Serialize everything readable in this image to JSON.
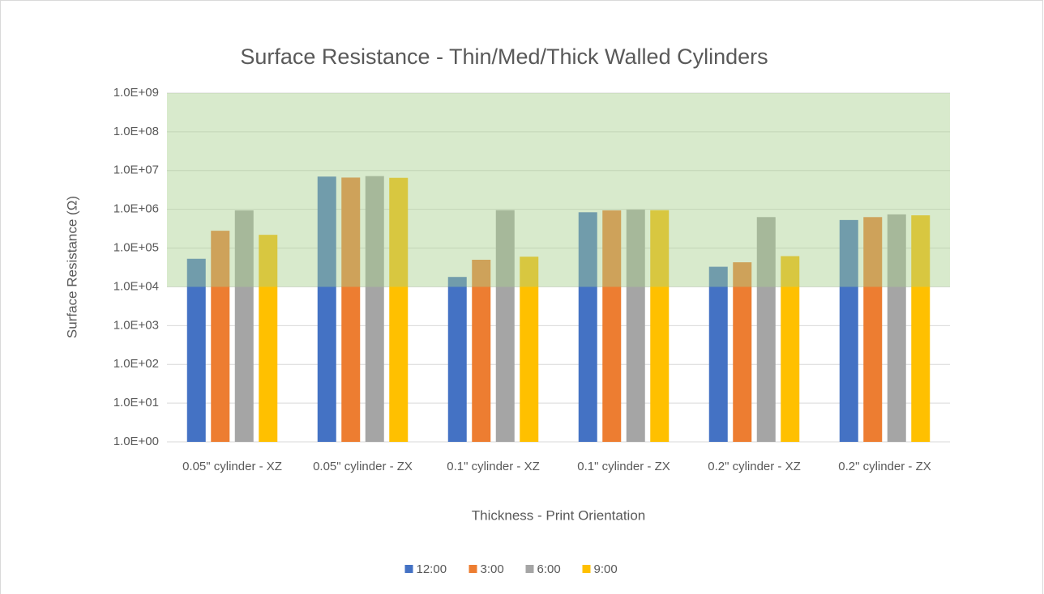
{
  "chart_data": {
    "type": "bar",
    "title": "Surface Resistance - Thin/Med/Thick Walled Cylinders",
    "x_label": "Thickness - Print Orientation",
    "y_label": "Surface Resistance (Ω)",
    "categories": [
      "0.05\" cylinder - XZ",
      "0.05\" cylinder - ZX",
      "0.1\" cylinder - XZ",
      "0.1\" cylinder - ZX",
      "0.2\" cylinder - XZ",
      "0.2\" cylinder - ZX"
    ],
    "series": [
      {
        "name": "12:00",
        "color": "#4472c4",
        "values": [
          53000,
          7000000,
          18000,
          840000,
          33000,
          530000
        ]
      },
      {
        "name": "3:00",
        "color": "#ed7d31",
        "values": [
          280000,
          6600000,
          50000,
          940000,
          43000,
          630000
        ]
      },
      {
        "name": "6:00",
        "color": "#a5a5a5",
        "values": [
          940000,
          7200000,
          950000,
          980000,
          630000,
          740000
        ]
      },
      {
        "name": "9:00",
        "color": "#ffc000",
        "values": [
          220000,
          6500000,
          60000,
          950000,
          62000,
          700000
        ]
      }
    ],
    "log_scale": true,
    "ylim": [
      1,
      1000000000
    ],
    "yticks": [
      {
        "value": 1,
        "label": "1.0E+00"
      },
      {
        "value": 10,
        "label": "1.0E+01"
      },
      {
        "value": 100,
        "label": "1.0E+02"
      },
      {
        "value": 1000,
        "label": "1.0E+03"
      },
      {
        "value": 10000,
        "label": "1.0E+04"
      },
      {
        "value": 100000,
        "label": "1.0E+05"
      },
      {
        "value": 1000000,
        "label": "1.0E+06"
      },
      {
        "value": 10000000,
        "label": "1.0E+07"
      },
      {
        "value": 100000000,
        "label": "1.0E+08"
      },
      {
        "value": 1000000000,
        "label": "1.0E+09"
      }
    ],
    "grid": true,
    "shaded_range": [
      10000,
      1000000000
    ],
    "shaded_color": "#a9d18e",
    "legend": "bottom"
  }
}
